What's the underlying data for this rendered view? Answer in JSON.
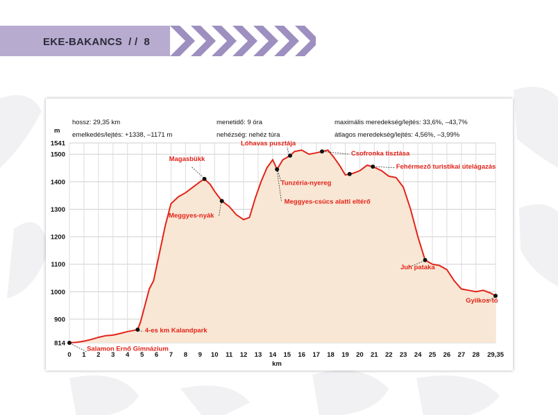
{
  "header": {
    "title": "EKE-BAKANCS",
    "separator": "/ /",
    "page_number": "8"
  },
  "colors": {
    "banner": "#b7acd0",
    "chevron": "#9d90c0",
    "line": "#e2231a",
    "fill": "#f8e7d4",
    "label": "#e2231a"
  },
  "chart_data": {
    "type": "area",
    "xlabel": "km",
    "ylabel": "m",
    "xlim": [
      0,
      29.35
    ],
    "ylim": [
      814,
      1541
    ],
    "x_ticks": [
      "0",
      "1",
      "2",
      "3",
      "4",
      "5",
      "6",
      "7",
      "8",
      "9",
      "10",
      "11",
      "12",
      "13",
      "14",
      "15",
      "16",
      "17",
      "18",
      "19",
      "20",
      "21",
      "22",
      "23",
      "24",
      "25",
      "26",
      "27",
      "28",
      "29,35"
    ],
    "y_ticks": [
      814,
      900,
      1000,
      1100,
      1200,
      1300,
      1400,
      1500,
      1541
    ],
    "grid": true,
    "info": {
      "length": "hossz: 29,35 km",
      "elevation": "emelkedés/lejtés: +1338, –1171 m",
      "time": "menetidő: 9 óra",
      "difficulty": "nehézség: nehéz túra",
      "max_slope": "maximális meredekség/lejtés: 33,6%, –43,7%",
      "avg_slope": "átlagos meredekség/lejtés: 4,56%, –3,99%"
    },
    "series": [
      {
        "points": [
          [
            0,
            814
          ],
          [
            0.5,
            816
          ],
          [
            1,
            820
          ],
          [
            1.5,
            826
          ],
          [
            2,
            834
          ],
          [
            2.5,
            840
          ],
          [
            3,
            842
          ],
          [
            3.5,
            848
          ],
          [
            4,
            855
          ],
          [
            4.5,
            860
          ],
          [
            4.7,
            862
          ],
          [
            4.9,
            890
          ],
          [
            5.2,
            950
          ],
          [
            5.5,
            1010
          ],
          [
            5.8,
            1040
          ],
          [
            6.2,
            1140
          ],
          [
            6.6,
            1240
          ],
          [
            7,
            1320
          ],
          [
            7.5,
            1345
          ],
          [
            8,
            1360
          ],
          [
            8.5,
            1380
          ],
          [
            9,
            1400
          ],
          [
            9.3,
            1410
          ],
          [
            9.7,
            1390
          ],
          [
            10,
            1365
          ],
          [
            10.5,
            1330
          ],
          [
            11,
            1310
          ],
          [
            11.5,
            1280
          ],
          [
            12,
            1262
          ],
          [
            12.4,
            1270
          ],
          [
            12.8,
            1340
          ],
          [
            13.2,
            1400
          ],
          [
            13.6,
            1450
          ],
          [
            14,
            1480
          ],
          [
            14.3,
            1445
          ],
          [
            14.7,
            1480
          ],
          [
            15.2,
            1495
          ],
          [
            15.5,
            1510
          ],
          [
            16,
            1515
          ],
          [
            16.5,
            1500
          ],
          [
            17,
            1505
          ],
          [
            17.4,
            1510
          ],
          [
            17.8,
            1515
          ],
          [
            18.2,
            1490
          ],
          [
            18.6,
            1460
          ],
          [
            19,
            1425
          ],
          [
            19.5,
            1430
          ],
          [
            20,
            1440
          ],
          [
            20.5,
            1460
          ],
          [
            20.9,
            1455
          ],
          [
            21.5,
            1440
          ],
          [
            22,
            1420
          ],
          [
            22.5,
            1415
          ],
          [
            23,
            1380
          ],
          [
            23.5,
            1300
          ],
          [
            24,
            1200
          ],
          [
            24.5,
            1115
          ],
          [
            25,
            1100
          ],
          [
            25.5,
            1095
          ],
          [
            26,
            1080
          ],
          [
            26.5,
            1040
          ],
          [
            27,
            1010
          ],
          [
            27.5,
            1005
          ],
          [
            28,
            1000
          ],
          [
            28.5,
            1005
          ],
          [
            29,
            995
          ],
          [
            29.35,
            985
          ]
        ]
      }
    ],
    "annotations": [
      {
        "text": "Salamon Ernő Gimnázium",
        "x": 0,
        "y": 814,
        "lx": 1.2,
        "ly": 785,
        "anchor": "start",
        "line": [
          [
            0.05,
            812
          ],
          [
            1.2,
            781
          ]
        ]
      },
      {
        "text": "4-es km Kalandpark",
        "x": 4.7,
        "y": 862,
        "lx": 5.2,
        "ly": 852,
        "anchor": "start",
        "line": [
          [
            4.75,
            858
          ],
          [
            5.1,
            856
          ]
        ]
      },
      {
        "text": "Magasbükk",
        "x": 9.3,
        "y": 1410,
        "lx": 8.1,
        "ly": 1475,
        "anchor": "middle",
        "line": [
          [
            9.25,
            1414
          ],
          [
            8.4,
            1455
          ]
        ]
      },
      {
        "text": "Meggyes-nyák",
        "x": 10.5,
        "y": 1330,
        "lx": 8.4,
        "ly": 1270,
        "anchor": "middle",
        "line": [
          [
            10.45,
            1325
          ],
          [
            10.3,
            1275
          ]
        ]
      },
      {
        "text": "Lóhavas pusztája",
        "x": 15.2,
        "y": 1495,
        "lx": 13.7,
        "ly": 1532,
        "anchor": "middle",
        "line": [
          [
            15.15,
            1498
          ],
          [
            15,
            1525
          ]
        ]
      },
      {
        "text": "Tunzéria-nyereg",
        "x": 14.3,
        "y": 1445,
        "lx": 16.3,
        "ly": 1388,
        "anchor": "middle",
        "line": [
          [
            14.35,
            1440
          ],
          [
            14.6,
            1398
          ]
        ]
      },
      {
        "text": "Meggyes-csúcs alatti eltérő",
        "x": 14.3,
        "y": 1445,
        "lx": 14.8,
        "ly": 1320,
        "anchor": "start",
        "line": [
          [
            14.3,
            1440
          ],
          [
            14.6,
            1330
          ]
        ]
      },
      {
        "text": "Csofronka tisztása",
        "x": 17.4,
        "y": 1510,
        "lx": 19.4,
        "ly": 1496,
        "anchor": "start",
        "line": [
          [
            17.45,
            1510
          ],
          [
            19.3,
            1500
          ]
        ]
      },
      {
        "text": "Fehérmező turistikai útelágazás",
        "x": 20.9,
        "y": 1455,
        "lx": 22.5,
        "ly": 1448,
        "anchor": "start",
        "line": [
          [
            20.95,
            1455
          ],
          [
            22.4,
            1451
          ]
        ]
      },
      {
        "text": "Juh pataka",
        "x": 24.5,
        "y": 1115,
        "lx": 22.8,
        "ly": 1082,
        "anchor": "start",
        "line": [
          [
            24.45,
            1112
          ],
          [
            23.4,
            1090
          ]
        ]
      },
      {
        "text": "Gyilkos-tó",
        "x": 29.35,
        "y": 985,
        "lx": 27.3,
        "ly": 960,
        "anchor": "start",
        "line": [
          [
            29.3,
            980
          ],
          [
            28.8,
            968
          ]
        ]
      }
    ],
    "markers": [
      {
        "x": 0,
        "y": 814
      },
      {
        "x": 4.7,
        "y": 862
      },
      {
        "x": 9.3,
        "y": 1410
      },
      {
        "x": 10.5,
        "y": 1330
      },
      {
        "x": 14.3,
        "y": 1445
      },
      {
        "x": 15.2,
        "y": 1495
      },
      {
        "x": 17.4,
        "y": 1510
      },
      {
        "x": 19.3,
        "y": 1428
      },
      {
        "x": 20.9,
        "y": 1455
      },
      {
        "x": 24.5,
        "y": 1115
      },
      {
        "x": 29.35,
        "y": 985
      }
    ]
  }
}
